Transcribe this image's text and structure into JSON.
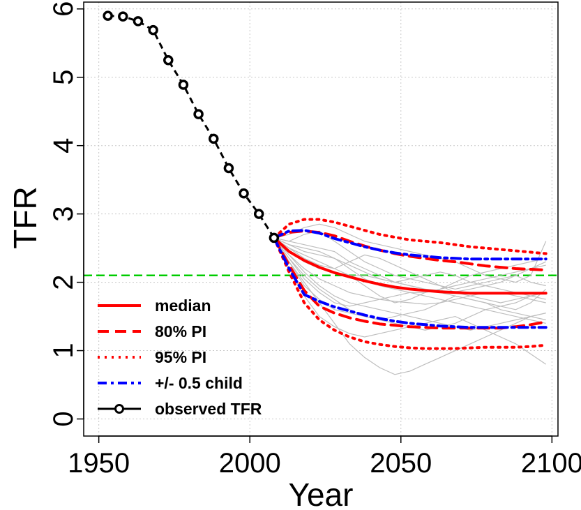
{
  "chart_data": {
    "type": "line",
    "title": "",
    "xlabel": "Year",
    "ylabel": "TFR",
    "xlim": [
      1945,
      2102
    ],
    "ylim": [
      -0.25,
      6.1
    ],
    "xticks": [
      1950,
      2000,
      2050,
      2100
    ],
    "yticks": [
      0,
      1,
      2,
      3,
      4,
      5,
      6
    ],
    "grid": true,
    "legend_position": "bottom-left",
    "colors": {
      "median": "#ff0000",
      "pi80": "#ff0000",
      "pi95": "#ff0000",
      "half_child": "#0000ff",
      "observed": "#000000",
      "replacement": "#00cc00",
      "trajectories": "#bebebe"
    },
    "reference_line": {
      "y": 2.1
    },
    "observed": {
      "x": [
        1953,
        1958,
        1963,
        1968,
        1973,
        1978,
        1983,
        1988,
        1993,
        1998,
        2003,
        2008
      ],
      "y": [
        5.9,
        5.89,
        5.82,
        5.69,
        5.25,
        4.89,
        4.46,
        4.1,
        3.67,
        3.3,
        3.0,
        2.65
      ]
    },
    "forecast_x": [
      2008,
      2013,
      2018,
      2023,
      2028,
      2033,
      2038,
      2043,
      2048,
      2053,
      2058,
      2063,
      2068,
      2073,
      2078,
      2083,
      2088,
      2093,
      2098
    ],
    "series": [
      {
        "key": "median",
        "values": [
          2.65,
          2.45,
          2.32,
          2.22,
          2.14,
          2.08,
          2.02,
          1.97,
          1.93,
          1.9,
          1.88,
          1.86,
          1.85,
          1.84,
          1.84,
          1.84,
          1.84,
          1.84,
          1.84
        ]
      },
      {
        "key": "pi80_upper",
        "values": [
          2.65,
          2.73,
          2.75,
          2.73,
          2.68,
          2.6,
          2.53,
          2.47,
          2.42,
          2.38,
          2.35,
          2.32,
          2.3,
          2.27,
          2.24,
          2.22,
          2.2,
          2.19,
          2.18
        ]
      },
      {
        "key": "pi80_lower",
        "values": [
          2.65,
          2.25,
          1.88,
          1.65,
          1.55,
          1.48,
          1.43,
          1.39,
          1.37,
          1.35,
          1.34,
          1.33,
          1.33,
          1.33,
          1.33,
          1.33,
          1.35,
          1.38,
          1.42
        ]
      },
      {
        "key": "pi95_upper",
        "values": [
          2.65,
          2.85,
          2.92,
          2.92,
          2.88,
          2.82,
          2.76,
          2.7,
          2.66,
          2.62,
          2.6,
          2.58,
          2.55,
          2.52,
          2.5,
          2.48,
          2.46,
          2.44,
          2.42
        ]
      },
      {
        "key": "pi95_lower",
        "values": [
          2.65,
          2.15,
          1.7,
          1.45,
          1.3,
          1.2,
          1.13,
          1.09,
          1.06,
          1.04,
          1.03,
          1.03,
          1.03,
          1.04,
          1.05,
          1.05,
          1.05,
          1.06,
          1.08
        ]
      },
      {
        "key": "half_child_upper",
        "values": [
          2.65,
          2.75,
          2.76,
          2.72,
          2.64,
          2.58,
          2.52,
          2.47,
          2.43,
          2.4,
          2.38,
          2.36,
          2.35,
          2.34,
          2.34,
          2.34,
          2.34,
          2.34,
          2.34
        ]
      },
      {
        "key": "half_child_lower",
        "values": [
          2.65,
          2.2,
          1.82,
          1.72,
          1.64,
          1.58,
          1.52,
          1.47,
          1.43,
          1.4,
          1.38,
          1.36,
          1.35,
          1.34,
          1.34,
          1.34,
          1.34,
          1.34,
          1.34
        ]
      }
    ],
    "trajectories": [
      [
        2.65,
        2.5,
        2.4,
        2.3,
        2.2,
        2.1,
        1.95,
        1.8,
        1.7,
        1.75,
        1.85,
        1.9,
        1.95,
        2.0,
        2.05,
        2.1,
        2.15,
        2.2,
        2.25
      ],
      [
        2.65,
        2.3,
        2.0,
        1.7,
        1.4,
        1.1,
        0.9,
        0.75,
        0.65,
        0.7,
        0.8,
        0.9,
        1.0,
        1.1,
        1.2,
        1.3,
        1.4,
        1.5,
        1.55
      ],
      [
        2.65,
        2.6,
        2.55,
        2.5,
        2.45,
        2.3,
        2.2,
        2.1,
        2.0,
        1.95,
        1.9,
        1.88,
        1.86,
        1.9,
        1.95,
        2.0,
        2.1,
        2.2,
        2.3
      ],
      [
        2.65,
        2.4,
        2.2,
        2.05,
        1.95,
        1.85,
        1.8,
        1.75,
        1.72,
        1.7,
        1.68,
        1.7,
        1.75,
        1.8,
        1.85,
        1.85,
        1.8,
        1.75,
        1.7
      ],
      [
        2.65,
        2.7,
        2.8,
        2.85,
        2.8,
        2.7,
        2.6,
        2.55,
        2.5,
        2.45,
        2.4,
        2.35,
        2.3,
        2.2,
        2.1,
        2.05,
        2.0,
        2.1,
        2.6
      ],
      [
        2.65,
        2.35,
        2.1,
        1.9,
        1.75,
        1.6,
        1.5,
        1.45,
        1.5,
        1.55,
        1.6,
        1.7,
        1.8,
        1.75,
        1.7,
        1.6,
        1.55,
        1.5,
        1.45
      ],
      [
        2.65,
        2.55,
        2.45,
        2.4,
        2.35,
        2.25,
        2.15,
        2.05,
        2.0,
        2.05,
        2.1,
        2.15,
        2.1,
        2.0,
        1.95,
        1.9,
        1.85,
        1.8,
        1.75
      ],
      [
        2.65,
        2.2,
        1.8,
        1.5,
        1.35,
        1.25,
        1.2,
        1.25,
        1.3,
        1.35,
        1.4,
        1.45,
        1.5,
        1.4,
        1.3,
        1.2,
        1.1,
        0.95,
        0.8
      ],
      [
        2.65,
        2.45,
        2.3,
        2.2,
        2.15,
        2.1,
        2.1,
        2.05,
        2.0,
        1.95,
        1.9,
        1.85,
        1.8,
        1.75,
        1.7,
        1.65,
        1.6,
        1.7,
        1.9
      ],
      [
        2.65,
        2.6,
        2.7,
        2.75,
        2.6,
        2.45,
        2.3,
        2.2,
        2.1,
        2.05,
        2.0,
        1.95,
        1.9,
        1.95,
        2.0,
        2.05,
        2.1,
        2.0,
        1.95
      ],
      [
        2.65,
        2.3,
        1.95,
        1.75,
        1.6,
        1.55,
        1.5,
        1.45,
        1.4,
        1.35,
        1.3,
        1.35,
        1.4,
        1.5,
        1.6,
        1.65,
        1.7,
        1.8,
        1.85
      ],
      [
        2.65,
        2.5,
        2.35,
        2.25,
        2.2,
        2.3,
        2.4,
        2.35,
        2.25,
        2.15,
        2.05,
        1.95,
        1.85,
        1.8,
        1.75,
        1.7,
        1.75,
        1.8,
        1.85
      ],
      [
        2.65,
        2.4,
        2.15,
        1.95,
        1.8,
        1.7,
        1.65,
        1.6,
        1.55,
        1.5,
        1.45,
        1.4,
        1.35,
        1.3,
        1.35,
        1.4,
        1.45,
        1.5,
        1.55
      ],
      [
        2.65,
        2.55,
        2.5,
        2.45,
        2.35,
        2.2,
        2.05,
        1.95,
        1.9,
        1.85,
        1.85,
        1.9,
        2.0,
        2.1,
        2.15,
        2.2,
        2.25,
        2.3,
        2.35
      ],
      [
        2.65,
        2.35,
        2.05,
        1.85,
        1.7,
        1.65,
        1.7,
        1.75,
        1.8,
        1.85,
        1.8,
        1.75,
        1.7,
        1.65,
        1.6,
        1.55,
        1.5,
        1.45,
        1.4
      ]
    ],
    "legend": [
      {
        "key": "median",
        "label": "median"
      },
      {
        "key": "pi80",
        "label": "80% PI"
      },
      {
        "key": "pi95",
        "label": "95% PI"
      },
      {
        "key": "half_child",
        "label": "+/- 0.5 child"
      },
      {
        "key": "observed",
        "label": "observed TFR"
      }
    ]
  }
}
